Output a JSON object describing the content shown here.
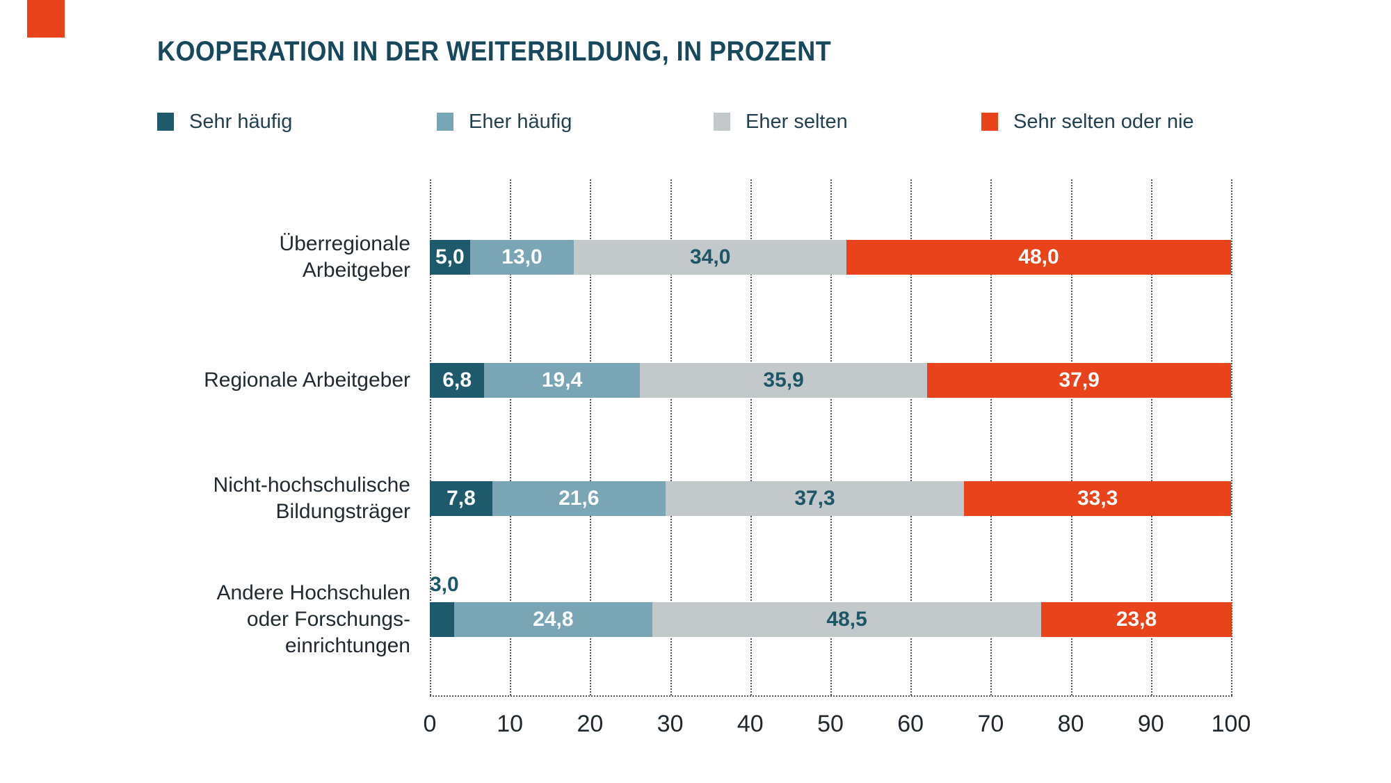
{
  "title": "KOOPERATION IN DER WEITERBILDUNG, IN PROZENT",
  "corner_mark_color": "#e8431a",
  "colors": {
    "title_text": "#17485c",
    "body_text": "#212a30",
    "value_on_dark": "#ffffff",
    "value_on_light": "#1d5666",
    "grid": "#555555"
  },
  "legend": {
    "items": [
      {
        "label": "Sehr häufig",
        "color": "#1e5a6c"
      },
      {
        "label": "Eher häufig",
        "color": "#79a5b4"
      },
      {
        "label": "Eher selten",
        "color": "#c3c8cb"
      },
      {
        "label": "Sehr selten oder nie",
        "color": "#e8431a"
      }
    ]
  },
  "chart_data": {
    "type": "bar",
    "orientation": "horizontal_stacked",
    "title": "KOOPERATION IN DER WEITERBILDUNG, IN PROZENT",
    "unit": "Prozent",
    "categories": [
      "Überregionale Arbeitgeber",
      "Regionale Arbeitgeber",
      "Nicht-hochschulische Bildungsträger",
      "Andere Hochschulen oder Forschungseinrichtungen"
    ],
    "category_lines": [
      [
        "Überregionale",
        "Arbeitgeber"
      ],
      [
        "Regionale Arbeitgeber"
      ],
      [
        "Nicht-hochschulische",
        "Bildungsträger"
      ],
      [
        "Andere Hochschulen",
        "oder Forschungs-",
        "einrichtungen"
      ]
    ],
    "series": [
      {
        "name": "Sehr häufig",
        "color": "#1e5a6c",
        "values": [
          5.0,
          6.8,
          7.8,
          3.0
        ],
        "labels": [
          "5,0",
          "6,8",
          "7,8",
          "3,0"
        ],
        "label_style": "on_dark",
        "labels_outside": [
          false,
          false,
          false,
          true
        ]
      },
      {
        "name": "Eher häufig",
        "color": "#79a5b4",
        "values": [
          13.0,
          19.4,
          21.6,
          24.8
        ],
        "labels": [
          "13,0",
          "19,4",
          "21,6",
          "24,8"
        ],
        "label_style": "on_dark",
        "labels_outside": [
          false,
          false,
          false,
          false
        ]
      },
      {
        "name": "Eher selten",
        "color": "#c3c8cb",
        "values": [
          34.0,
          35.9,
          37.3,
          48.5
        ],
        "labels": [
          "34,0",
          "35,9",
          "37,3",
          "48,5"
        ],
        "label_style": "on_light",
        "labels_outside": [
          false,
          false,
          false,
          false
        ]
      },
      {
        "name": "Sehr selten oder nie",
        "color": "#e8431a",
        "values": [
          48.0,
          37.9,
          33.3,
          23.8
        ],
        "labels": [
          "48,0",
          "37,9",
          "33,3",
          "23,8"
        ],
        "label_style": "on_dark",
        "labels_outside": [
          false,
          false,
          false,
          false
        ]
      }
    ],
    "xlim": [
      0,
      100
    ],
    "x_ticks": [
      0,
      10,
      20,
      30,
      40,
      50,
      60,
      70,
      80,
      90,
      100
    ],
    "x_tick_labels": [
      "0",
      "10",
      "20",
      "30",
      "40",
      "50",
      "60",
      "70",
      "80",
      "90",
      "100"
    ],
    "grid": "dotted_vertical",
    "legend_position": "top"
  }
}
